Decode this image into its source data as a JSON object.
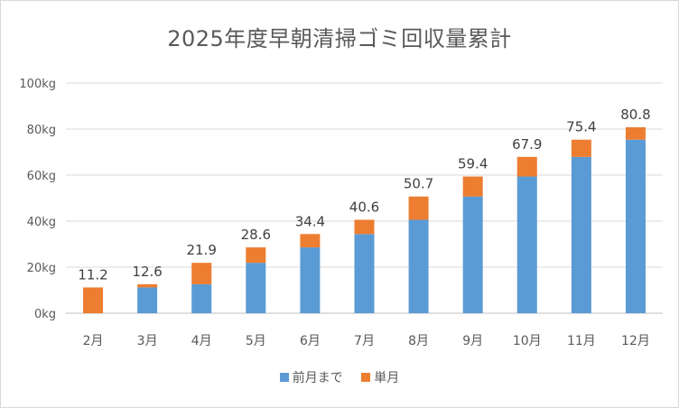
{
  "chart_data": {
    "type": "bar",
    "stacked": true,
    "title": "2025年度早朝清掃ゴミ回収量累計",
    "categories": [
      "2月",
      "3月",
      "4月",
      "5月",
      "6月",
      "7月",
      "8月",
      "9月",
      "10月",
      "11月",
      "12月"
    ],
    "series": [
      {
        "name": "前月まで",
        "color": "#5b9bd5",
        "values": [
          0,
          11.2,
          12.6,
          21.9,
          28.6,
          34.4,
          40.6,
          50.7,
          59.4,
          67.9,
          75.4
        ]
      },
      {
        "name": "単月",
        "color": "#ed7d31",
        "values": [
          11.2,
          1.4,
          9.3,
          6.7,
          5.8,
          6.2,
          10.1,
          8.7,
          8.5,
          7.5,
          5.4
        ]
      }
    ],
    "totals": [
      11.2,
      12.6,
      21.9,
      28.6,
      34.4,
      40.6,
      50.7,
      59.4,
      67.9,
      75.4,
      80.8
    ],
    "total_labels": [
      "11.2",
      "12.6",
      "21.9",
      "28.6",
      "34.4",
      "40.6",
      "50.7",
      "59.4",
      "67.9",
      "75.4",
      "80.8"
    ],
    "ylim": [
      0,
      100
    ],
    "yticks": [
      0,
      20,
      40,
      60,
      80,
      100
    ],
    "ytick_labels": [
      "0kg",
      "20kg",
      "40kg",
      "60kg",
      "80kg",
      "100kg"
    ],
    "grid": true,
    "legend_position": "bottom"
  }
}
